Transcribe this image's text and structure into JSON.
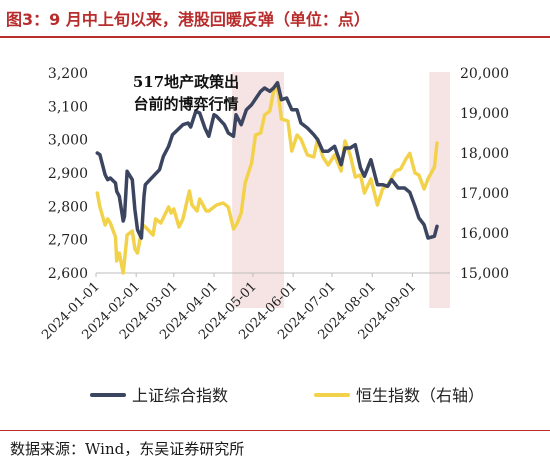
{
  "header": {
    "title": "图3：9 月中上旬以来，港股回暖反弹（单位：点）"
  },
  "footer": {
    "source": "数据来源：Wind，东吴证券研究所"
  },
  "chart_data": {
    "type": "line",
    "x_axis": {
      "type": "date",
      "range": [
        "2024-01-01",
        "2024-09-30"
      ],
      "ticks": [
        "2024-01-01",
        "2024-02-01",
        "2024-03-01",
        "2024-04-01",
        "2024-05-01",
        "2024-06-01",
        "2024-07-01",
        "2024-08-01",
        "2024-09-01"
      ]
    },
    "y_axis_left": {
      "range": [
        2600,
        3200
      ],
      "ticks": [
        2600,
        2700,
        2800,
        2900,
        3000,
        3100,
        3200
      ],
      "tick_labels": [
        "2,600",
        "2,700",
        "2,800",
        "2,900",
        "3,000",
        "3,100",
        "3,200"
      ]
    },
    "y_axis_right": {
      "range": [
        15000,
        20000
      ],
      "ticks": [
        15000,
        16000,
        17000,
        18000,
        19000,
        20000
      ],
      "tick_labels": [
        "15,000",
        "16,000",
        "17,000",
        "18,000",
        "19,000",
        "20,000"
      ]
    },
    "annotation": {
      "lines": [
        "517地产政策出",
        "台前的博弈行情"
      ]
    },
    "highlight_periods": [
      {
        "start": "2024-04-15",
        "end": "2024-05-25",
        "color": "#f6e4e4"
      },
      {
        "start": "2024-09-14",
        "end": "2024-09-30",
        "color": "#f6e4e4"
      }
    ],
    "grid": false,
    "legend_position": "bottom",
    "series": [
      {
        "name": "上证综合指数",
        "axis": "left",
        "color": "#3b4560",
        "points": [
          [
            "2024-01-02",
            2960
          ],
          [
            "2024-01-04",
            2955
          ],
          [
            "2024-01-08",
            2895
          ],
          [
            "2024-01-10",
            2880
          ],
          [
            "2024-01-12",
            2885
          ],
          [
            "2024-01-16",
            2870
          ],
          [
            "2024-01-17",
            2845
          ],
          [
            "2024-01-19",
            2830
          ],
          [
            "2024-01-22",
            2756
          ],
          [
            "2024-01-23",
            2770
          ],
          [
            "2024-01-25",
            2905
          ],
          [
            "2024-01-29",
            2880
          ],
          [
            "2024-01-31",
            2790
          ],
          [
            "2024-02-02",
            2730
          ],
          [
            "2024-02-05",
            2705
          ],
          [
            "2024-02-07",
            2830
          ],
          [
            "2024-02-08",
            2865
          ],
          [
            "2024-02-19",
            2910
          ],
          [
            "2024-02-22",
            2950
          ],
          [
            "2024-02-26",
            2980
          ],
          [
            "2024-02-29",
            3015
          ],
          [
            "2024-03-04",
            3030
          ],
          [
            "2024-03-08",
            3045
          ],
          [
            "2024-03-12",
            3050
          ],
          [
            "2024-03-14",
            3038
          ],
          [
            "2024-03-18",
            3085
          ],
          [
            "2024-03-21",
            3080
          ],
          [
            "2024-03-25",
            3035
          ],
          [
            "2024-03-28",
            3010
          ],
          [
            "2024-04-01",
            3075
          ],
          [
            "2024-04-03",
            3070
          ],
          [
            "2024-04-09",
            3045
          ],
          [
            "2024-04-12",
            3020
          ],
          [
            "2024-04-16",
            3010
          ],
          [
            "2024-04-18",
            3075
          ],
          [
            "2024-04-22",
            3045
          ],
          [
            "2024-04-26",
            3090
          ],
          [
            "2024-04-30",
            3105
          ],
          [
            "2024-05-07",
            3145
          ],
          [
            "2024-05-10",
            3155
          ],
          [
            "2024-05-14",
            3145
          ],
          [
            "2024-05-17",
            3155
          ],
          [
            "2024-05-20",
            3171
          ],
          [
            "2024-05-23",
            3120
          ],
          [
            "2024-05-27",
            3125
          ],
          [
            "2024-05-31",
            3090
          ],
          [
            "2024-06-04",
            3090
          ],
          [
            "2024-06-07",
            3050
          ],
          [
            "2024-06-12",
            3035
          ],
          [
            "2024-06-17",
            3015
          ],
          [
            "2024-06-20",
            3000
          ],
          [
            "2024-06-24",
            2965
          ],
          [
            "2024-06-28",
            2965
          ],
          [
            "2024-07-03",
            2980
          ],
          [
            "2024-07-08",
            2925
          ],
          [
            "2024-07-11",
            2975
          ],
          [
            "2024-07-15",
            2975
          ],
          [
            "2024-07-19",
            2985
          ],
          [
            "2024-07-23",
            2915
          ],
          [
            "2024-07-26",
            2890
          ],
          [
            "2024-07-31",
            2940
          ],
          [
            "2024-08-05",
            2865
          ],
          [
            "2024-08-09",
            2865
          ],
          [
            "2024-08-13",
            2860
          ],
          [
            "2024-08-16",
            2880
          ],
          [
            "2024-08-21",
            2855
          ],
          [
            "2024-08-26",
            2855
          ],
          [
            "2024-08-30",
            2842
          ],
          [
            "2024-09-03",
            2800
          ],
          [
            "2024-09-06",
            2765
          ],
          [
            "2024-09-10",
            2745
          ],
          [
            "2024-09-13",
            2705
          ],
          [
            "2024-09-18",
            2710
          ],
          [
            "2024-09-20",
            2740
          ]
        ]
      },
      {
        "name": "恒生指数（右轴）",
        "axis": "right",
        "color": "#f3d24b",
        "points": [
          [
            "2024-01-02",
            17000
          ],
          [
            "2024-01-04",
            16650
          ],
          [
            "2024-01-08",
            16200
          ],
          [
            "2024-01-10",
            16350
          ],
          [
            "2024-01-12",
            16250
          ],
          [
            "2024-01-16",
            15900
          ],
          [
            "2024-01-17",
            15300
          ],
          [
            "2024-01-19",
            15500
          ],
          [
            "2024-01-22",
            15000
          ],
          [
            "2024-01-25",
            15950
          ],
          [
            "2024-01-29",
            16050
          ],
          [
            "2024-01-31",
            15600
          ],
          [
            "2024-02-02",
            15500
          ],
          [
            "2024-02-06",
            16200
          ],
          [
            "2024-02-08",
            16150
          ],
          [
            "2024-02-14",
            15950
          ],
          [
            "2024-02-16",
            16350
          ],
          [
            "2024-02-20",
            16250
          ],
          [
            "2024-02-26",
            16650
          ],
          [
            "2024-02-28",
            16500
          ],
          [
            "2024-03-01",
            16600
          ],
          [
            "2024-03-05",
            16150
          ],
          [
            "2024-03-08",
            16350
          ],
          [
            "2024-03-13",
            17050
          ],
          [
            "2024-03-15",
            16700
          ],
          [
            "2024-03-19",
            16550
          ],
          [
            "2024-03-21",
            16850
          ],
          [
            "2024-03-26",
            16550
          ],
          [
            "2024-03-28",
            16550
          ],
          [
            "2024-04-03",
            16700
          ],
          [
            "2024-04-08",
            16750
          ],
          [
            "2024-04-12",
            16650
          ],
          [
            "2024-04-16",
            16100
          ],
          [
            "2024-04-19",
            16250
          ],
          [
            "2024-04-22",
            16500
          ],
          [
            "2024-04-25",
            17250
          ],
          [
            "2024-04-30",
            17750
          ],
          [
            "2024-05-03",
            18450
          ],
          [
            "2024-05-07",
            18500
          ],
          [
            "2024-05-10",
            18950
          ],
          [
            "2024-05-14",
            19050
          ],
          [
            "2024-05-17",
            19550
          ],
          [
            "2024-05-20",
            19650
          ],
          [
            "2024-05-23",
            18850
          ],
          [
            "2024-05-28",
            18800
          ],
          [
            "2024-05-31",
            18050
          ],
          [
            "2024-06-04",
            18450
          ],
          [
            "2024-06-07",
            18350
          ],
          [
            "2024-06-12",
            17950
          ],
          [
            "2024-06-17",
            17900
          ],
          [
            "2024-06-20",
            18350
          ],
          [
            "2024-06-24",
            17900
          ],
          [
            "2024-06-28",
            17700
          ],
          [
            "2024-07-03",
            17950
          ],
          [
            "2024-07-08",
            17550
          ],
          [
            "2024-07-11",
            18300
          ],
          [
            "2024-07-15",
            17950
          ],
          [
            "2024-07-19",
            17400
          ],
          [
            "2024-07-23",
            17450
          ],
          [
            "2024-07-26",
            17000
          ],
          [
            "2024-07-31",
            17350
          ],
          [
            "2024-08-05",
            16700
          ],
          [
            "2024-08-09",
            17100
          ],
          [
            "2024-08-13",
            17200
          ],
          [
            "2024-08-19",
            17550
          ],
          [
            "2024-08-23",
            17600
          ],
          [
            "2024-08-27",
            17850
          ],
          [
            "2024-08-30",
            17990
          ],
          [
            "2024-09-03",
            17500
          ],
          [
            "2024-09-06",
            17450
          ],
          [
            "2024-09-10",
            17100
          ],
          [
            "2024-09-13",
            17350
          ],
          [
            "2024-09-18",
            17650
          ],
          [
            "2024-09-20",
            18250
          ]
        ]
      }
    ]
  }
}
